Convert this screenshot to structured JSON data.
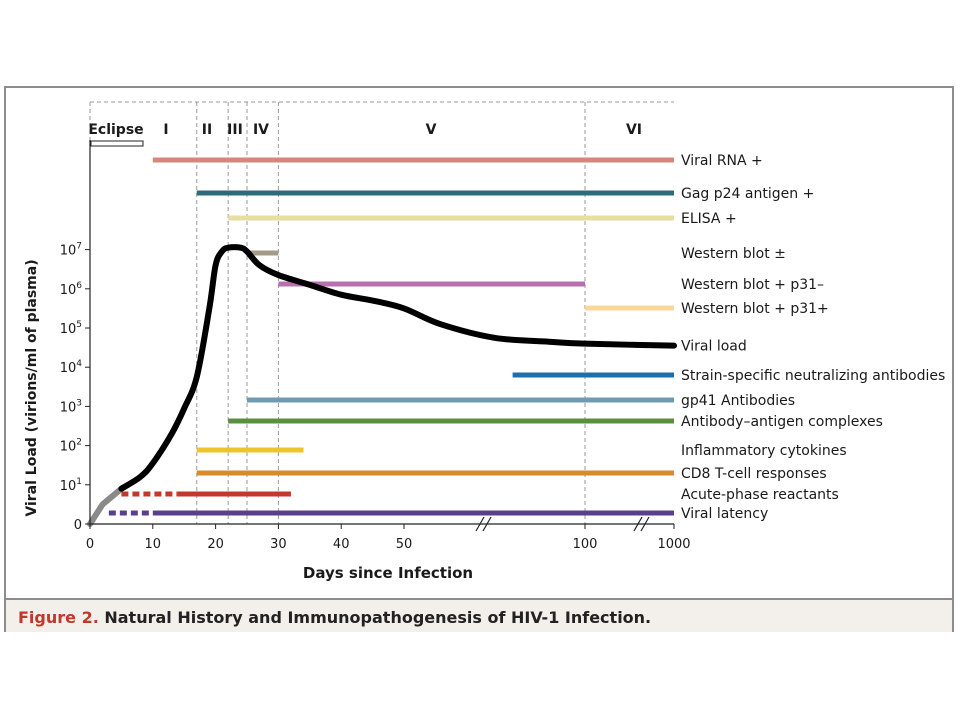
{
  "caption": {
    "figure_label": "Figure 2.",
    "title": "Natural History and Immunopathogenesis of HIV-1 Infection."
  },
  "chart_data": {
    "type": "line",
    "title": "",
    "xlabel": "Days since Infection",
    "ylabel": "Viral Load (virions/ml of plasma)",
    "x_scale": "broken (linear 0–50 days, then 100, then 1000)",
    "x_ticks": [
      "0",
      "10",
      "20",
      "30",
      "40",
      "50",
      "100",
      "1000"
    ],
    "y_scale": "log10",
    "y_ticks": [
      {
        "base": "0",
        "exp": ""
      },
      {
        "base": "10",
        "exp": "1"
      },
      {
        "base": "10",
        "exp": "2"
      },
      {
        "base": "10",
        "exp": "3"
      },
      {
        "base": "10",
        "exp": "4"
      },
      {
        "base": "10",
        "exp": "5"
      },
      {
        "base": "10",
        "exp": "6"
      },
      {
        "base": "10",
        "exp": "7"
      }
    ],
    "phases": [
      {
        "label": "Eclipse",
        "start": 0,
        "end": 10
      },
      {
        "label": "I",
        "start": 10,
        "end": 17
      },
      {
        "label": "II",
        "start": 17,
        "end": 22
      },
      {
        "label": "III",
        "start": 22,
        "end": 25
      },
      {
        "label": "IV",
        "start": 25,
        "end": 30
      },
      {
        "label": "V",
        "start": 30,
        "end": 100
      },
      {
        "label": "VI",
        "start": 100,
        "end": 1000
      }
    ],
    "series": [
      {
        "name": "Viral load",
        "unit": "log10 virions/ml",
        "color": "#000000",
        "points": [
          [
            0,
            0
          ],
          [
            2,
            0.5
          ],
          [
            5,
            0.9
          ],
          [
            8,
            1.2
          ],
          [
            10,
            1.55
          ],
          [
            13,
            2.3
          ],
          [
            15,
            2.95
          ],
          [
            17,
            3.75
          ],
          [
            19,
            5.5
          ],
          [
            20,
            6.6
          ],
          [
            21,
            6.95
          ],
          [
            22,
            7.05
          ],
          [
            24,
            7.05
          ],
          [
            25,
            6.95
          ],
          [
            27,
            6.6
          ],
          [
            30,
            6.35
          ],
          [
            35,
            6.1
          ],
          [
            40,
            5.85
          ],
          [
            45,
            5.7
          ],
          [
            50,
            5.5
          ],
          [
            60,
            5.1
          ],
          [
            75,
            4.75
          ],
          [
            90,
            4.65
          ],
          [
            100,
            4.6
          ],
          [
            1000,
            4.55
          ]
        ]
      }
    ],
    "markers": [
      {
        "name": "Viral RNA +",
        "color": "#d4877a",
        "start": 10,
        "end": 1000,
        "dashed_start": null
      },
      {
        "name": "Gag p24 antigen +",
        "color": "#2b6b7c",
        "start": 17,
        "end": 1000,
        "dashed_start": null
      },
      {
        "name": "ELISA +",
        "color": "#e8dea2",
        "start": 22,
        "end": 1000,
        "dashed_start": null
      },
      {
        "name": "Western blot ±",
        "color": "#a39a88",
        "start": 25,
        "end": 30,
        "dashed_start": null
      },
      {
        "name": "Western blot + p31–",
        "color": "#b86faf",
        "start": 30,
        "end": 100,
        "dashed_start": null
      },
      {
        "name": "Western blot + p31+",
        "color": "#f8d79a",
        "start": 100,
        "end": 1000,
        "dashed_start": null
      },
      {
        "name": "Strain-specific neutralizing antibodies",
        "color": "#1f6ea8",
        "start": 80,
        "end": 1000,
        "dashed_start": null
      },
      {
        "name": "gp41 Antibodies",
        "color": "#6f9bb0",
        "start": 25,
        "end": 1000,
        "dashed_start": null
      },
      {
        "name": "Antibody–antigen complexes",
        "color": "#5b8f3e",
        "start": 22,
        "end": 1000,
        "dashed_start": null
      },
      {
        "name": "Inflammatory cytokines",
        "color": "#ecc52c",
        "start": 17,
        "end": 34,
        "dashed_start": null
      },
      {
        "name": "CD8 T-cell responses",
        "color": "#d98a2c",
        "start": 17,
        "end": 1000,
        "dashed_start": null
      },
      {
        "name": "Acute-phase reactants",
        "color": "#c0392b",
        "start": 14,
        "end": 32,
        "dashed_start": 5
      },
      {
        "name": "Viral latency",
        "color": "#5a3f8f",
        "start": 10,
        "end": 1000,
        "dashed_start": 3
      }
    ]
  }
}
